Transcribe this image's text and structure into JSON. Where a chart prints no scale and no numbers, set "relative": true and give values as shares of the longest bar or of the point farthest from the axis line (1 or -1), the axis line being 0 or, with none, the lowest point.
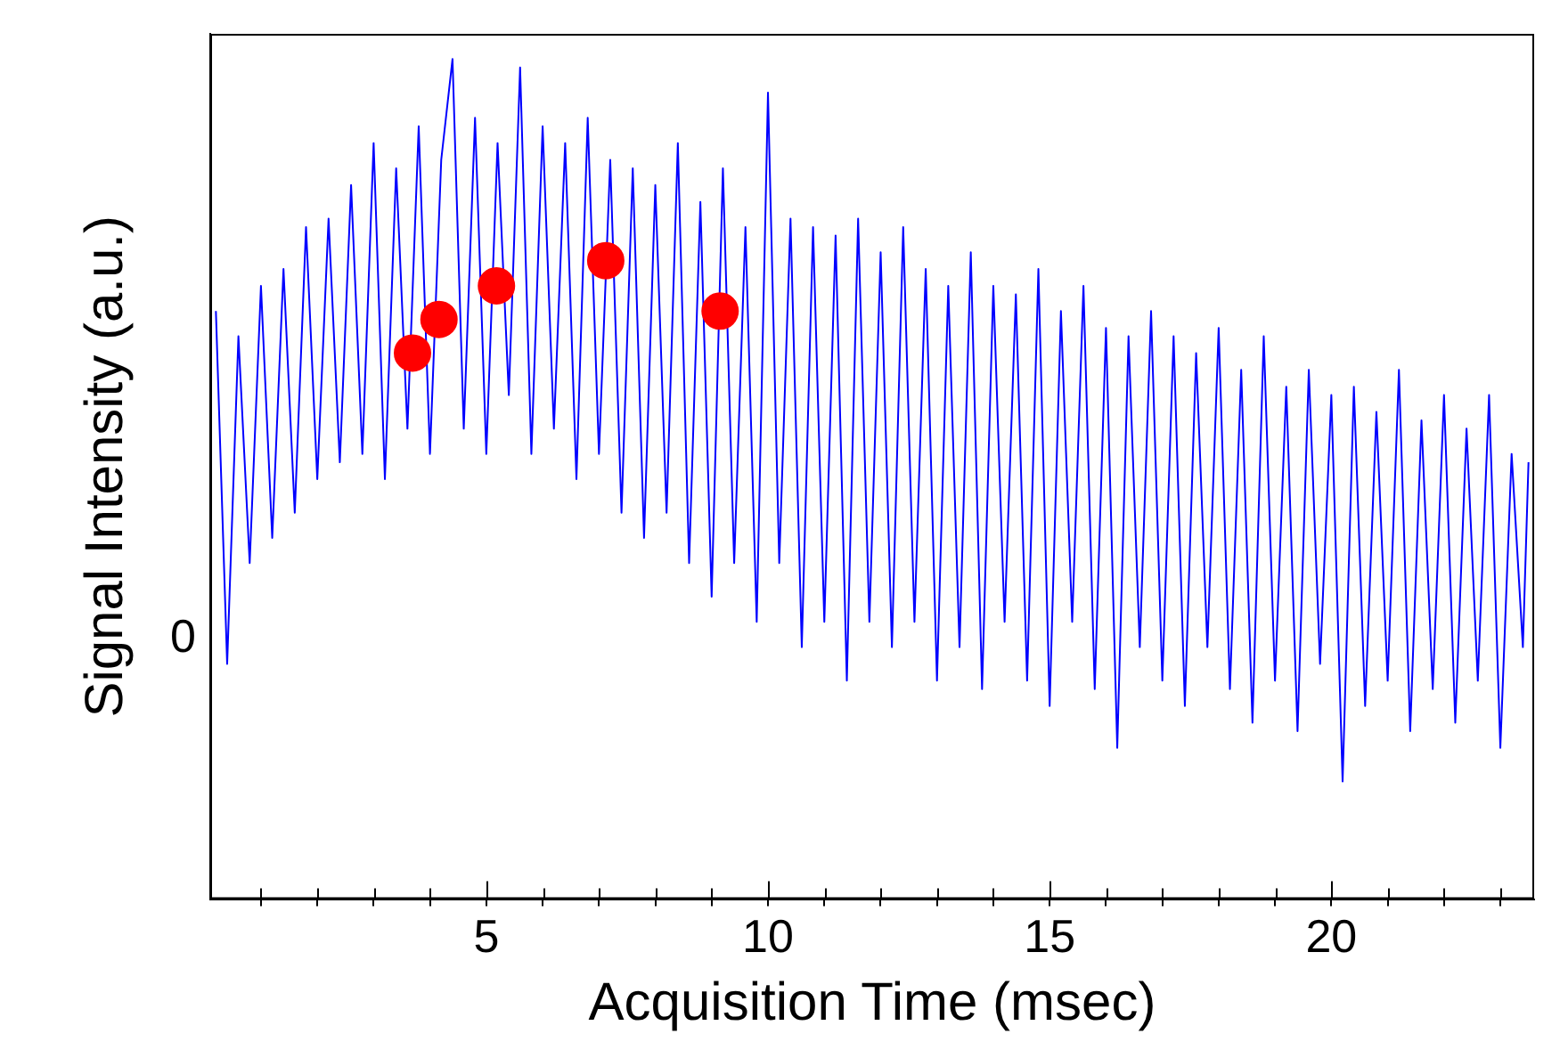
{
  "chart_data": {
    "type": "line",
    "relative": true,
    "xlabel": "Acquisition Time (msec)",
    "ylabel": "Signal Intensity (a.u.)",
    "xlim": [
      0.1,
      23.6
    ],
    "xticks": [
      {
        "value": 1,
        "label": null
      },
      {
        "value": 2,
        "label": null
      },
      {
        "value": 3,
        "label": null
      },
      {
        "value": 4,
        "label": null
      },
      5,
      {
        "value": 6,
        "label": null
      },
      {
        "value": 7,
        "label": null
      },
      {
        "value": 8,
        "label": null
      },
      {
        "value": 9,
        "label": null
      },
      10,
      {
        "value": 11,
        "label": null
      },
      {
        "value": 12,
        "label": null
      },
      {
        "value": 13,
        "label": null
      },
      {
        "value": 14,
        "label": null
      },
      15,
      {
        "value": 16,
        "label": null
      },
      {
        "value": 17,
        "label": null
      },
      {
        "value": 18,
        "label": null
      },
      {
        "value": 19,
        "label": null
      },
      20,
      {
        "value": 21,
        "label": null
      },
      {
        "value": 22,
        "label": null
      },
      {
        "value": 23,
        "label": null
      }
    ],
    "grid": false,
    "legend": false,
    "annotations": [
      "0"
    ],
    "series": [
      {
        "type": "line",
        "color": "#0000ff",
        "marker": "none",
        "x": [
          0.2,
          0.4,
          0.6,
          0.8,
          1.0,
          1.2,
          1.4,
          1.6,
          1.8,
          2.0,
          2.2,
          2.4,
          2.6,
          2.8,
          3.0,
          3.2,
          3.4,
          3.6,
          3.8,
          4.0,
          4.2,
          4.4,
          4.6,
          4.8,
          5.0,
          5.2,
          5.4,
          5.6,
          5.8,
          6.0,
          6.2,
          6.4,
          6.6,
          6.8,
          7.0,
          7.2,
          7.4,
          7.6,
          7.8,
          8.0,
          8.2,
          8.4,
          8.6,
          8.8,
          9.0,
          9.2,
          9.4,
          9.6,
          9.8,
          10.0,
          10.2,
          10.4,
          10.6,
          10.8,
          11.0,
          11.2,
          11.4,
          11.6,
          11.8,
          12.0,
          12.2,
          12.4,
          12.6,
          12.8,
          13.0,
          13.2,
          13.4,
          13.6,
          13.8,
          14.0,
          14.2,
          14.4,
          14.6,
          14.8,
          15.0,
          15.2,
          15.4,
          15.6,
          15.8,
          16.0,
          16.2,
          16.4,
          16.6,
          16.8,
          17.0,
          17.2,
          17.4,
          17.6,
          17.8,
          18.0,
          18.2,
          18.4,
          18.6,
          18.8,
          19.0,
          19.2,
          19.4,
          19.6,
          19.8,
          20.0,
          20.2,
          20.4,
          20.6,
          20.8,
          21.0,
          21.2,
          21.4,
          21.6,
          21.8,
          22.0,
          22.2,
          22.4,
          22.6,
          22.8,
          23.0,
          23.2,
          23.4,
          23.5
        ],
        "values": [
          0.7,
          0.28,
          0.67,
          0.4,
          0.73,
          0.43,
          0.75,
          0.46,
          0.8,
          0.5,
          0.81,
          0.52,
          0.85,
          0.53,
          0.9,
          0.5,
          0.87,
          0.56,
          0.92,
          0.53,
          0.88,
          1.0,
          0.56,
          0.93,
          0.53,
          0.9,
          0.6,
          0.99,
          0.53,
          0.92,
          0.56,
          0.9,
          0.5,
          0.93,
          0.53,
          0.88,
          0.46,
          0.87,
          0.43,
          0.85,
          0.46,
          0.9,
          0.4,
          0.83,
          0.36,
          0.87,
          0.4,
          0.8,
          0.33,
          0.96,
          0.4,
          0.81,
          0.3,
          0.8,
          0.33,
          0.79,
          0.26,
          0.81,
          0.33,
          0.77,
          0.3,
          0.8,
          0.33,
          0.75,
          0.26,
          0.73,
          0.3,
          0.77,
          0.25,
          0.73,
          0.33,
          0.72,
          0.26,
          0.75,
          0.23,
          0.7,
          0.33,
          0.73,
          0.25,
          0.68,
          0.18,
          0.67,
          0.3,
          0.7,
          0.26,
          0.67,
          0.23,
          0.65,
          0.3,
          0.68,
          0.25,
          0.63,
          0.21,
          0.67,
          0.26,
          0.61,
          0.2,
          0.63,
          0.28,
          0.6,
          0.14,
          0.61,
          0.23,
          0.58,
          0.26,
          0.63,
          0.2,
          0.57,
          0.25,
          0.6,
          0.21,
          0.56,
          0.26,
          0.6,
          0.18,
          0.53,
          0.3,
          0.52
        ]
      },
      {
        "type": "scatter",
        "color": "#ff0000",
        "marker": "circle",
        "x": [
          3.69,
          4.16,
          5.18,
          7.12,
          9.15
        ],
        "values": [
          0.65,
          0.69,
          0.73,
          0.76,
          0.7
        ]
      }
    ]
  }
}
